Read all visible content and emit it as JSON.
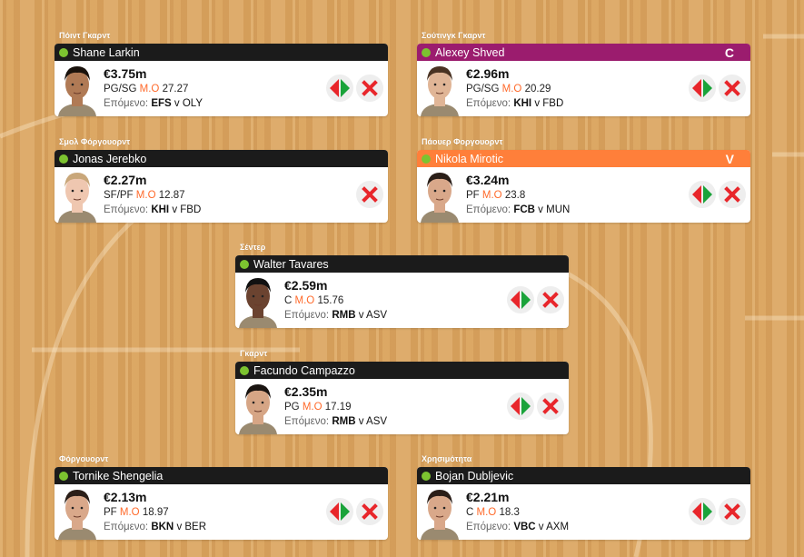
{
  "labels": {
    "avg": "M.O",
    "next": "Επόμενο:",
    "vs": "v"
  },
  "colors": {
    "header_default": "#1b1b1b",
    "captain": "#9b1c6e",
    "vice_captain": "#ff7f3a",
    "status_ok": "#7cc330",
    "mo": "#ff6a2b",
    "swap_left": "#e8262b",
    "swap_right": "#1aa33a",
    "remove": "#e8262b"
  },
  "players": [
    {
      "position_label": "Πόιντ Γκαρντ",
      "name": "Shane Larkin",
      "price": "€3.75m",
      "pos": "PG/SG",
      "avg": "27.27",
      "team": "EFS",
      "opponent": "OLY",
      "badge": "",
      "can_swap": true,
      "skin": "#b07a55",
      "hair": "#1a120c"
    },
    {
      "position_label": "Σούτινγκ Γκαρντ",
      "name": "Alexey Shved",
      "price": "€2.96m",
      "pos": "PG/SG",
      "avg": "20.29",
      "team": "KHI",
      "opponent": "FBD",
      "badge": "C",
      "can_swap": true,
      "skin": "#e0b596",
      "hair": "#4a3323"
    },
    {
      "position_label": "Σμολ Φόργουορντ",
      "name": "Jonas Jerebko",
      "price": "€2.27m",
      "pos": "SF/PF",
      "avg": "12.87",
      "team": "KHI",
      "opponent": "FBD",
      "badge": "",
      "can_swap": false,
      "skin": "#efc7b0",
      "hair": "#c9a77a"
    },
    {
      "position_label": "Πάουερ Φοργουορντ",
      "name": "Nikola Mirotic",
      "price": "€3.24m",
      "pos": "PF",
      "avg": "23.8",
      "team": "FCB",
      "opponent": "MUN",
      "badge": "V",
      "can_swap": true,
      "skin": "#d9a88a",
      "hair": "#2a1e18"
    },
    {
      "position_label": "Σέντερ",
      "name": "Walter Tavares",
      "price": "€2.59m",
      "pos": "C",
      "avg": "15.76",
      "team": "RMB",
      "opponent": "ASV",
      "badge": "",
      "can_swap": true,
      "skin": "#6b4330",
      "hair": "#111"
    },
    {
      "position_label": "Γκαρντ",
      "name": "Facundo Campazzo",
      "price": "€2.35m",
      "pos": "PG",
      "avg": "17.19",
      "team": "RMB",
      "opponent": "ASV",
      "badge": "",
      "can_swap": true,
      "skin": "#d6a585",
      "hair": "#1a1411"
    },
    {
      "position_label": "Φόργουορντ",
      "name": "Tornike Shengelia",
      "price": "€2.13m",
      "pos": "PF",
      "avg": "18.97",
      "team": "BKN",
      "opponent": "BER",
      "badge": "",
      "can_swap": true,
      "skin": "#d9a88a",
      "hair": "#2a1e18"
    },
    {
      "position_label": "Χρησιμότητα",
      "name": "Bojan Dubljevic",
      "price": "€2.21m",
      "pos": "C",
      "avg": "18.3",
      "team": "VBC",
      "opponent": "AXM",
      "badge": "",
      "can_swap": true,
      "skin": "#d9a88a",
      "hair": "#2a1e18"
    }
  ]
}
